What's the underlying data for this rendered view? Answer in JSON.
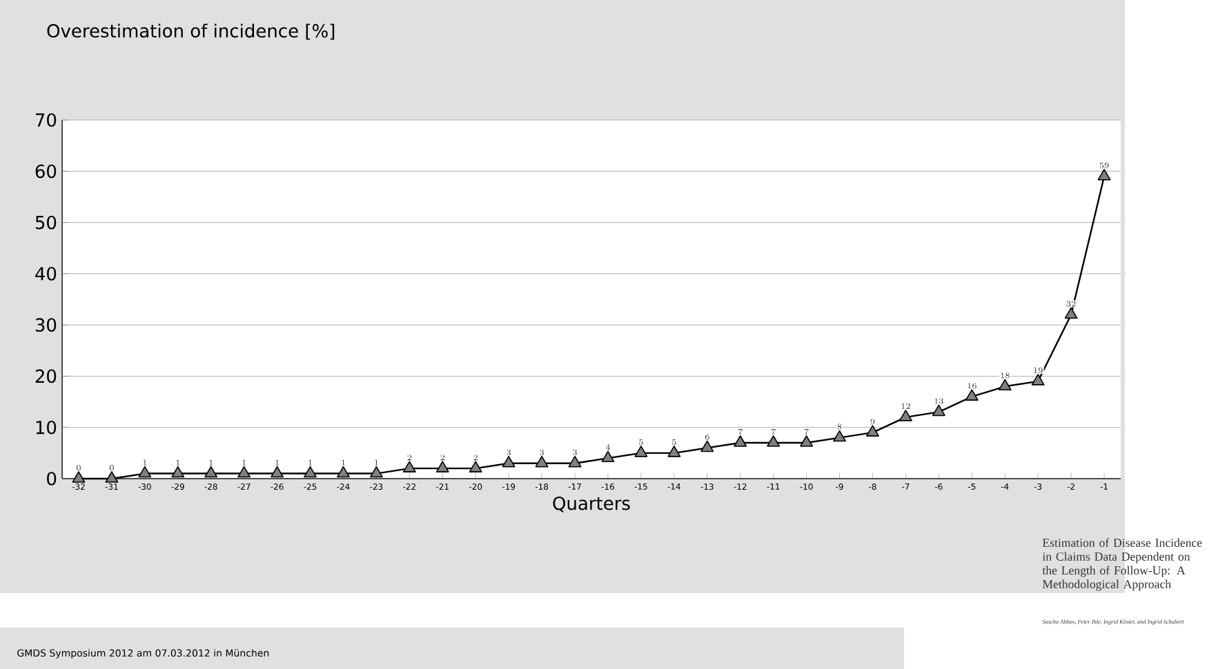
{
  "chart_data": {
    "type": "line",
    "ylabel": "Overestimation of incidence [%]",
    "xlabel": "Quarters",
    "categories": [
      "-32",
      "-31",
      "-30",
      "-29",
      "-28",
      "-27",
      "-26",
      "-25",
      "-24",
      "-23",
      "-22",
      "-21",
      "-20",
      "-19",
      "-18",
      "-17",
      "-16",
      "-15",
      "-14",
      "-13",
      "-12",
      "-11",
      "-10",
      "-9",
      "-8",
      "-7",
      "-6",
      "-5",
      "-4",
      "-3",
      "-2",
      "-1"
    ],
    "values": [
      0,
      0,
      1,
      1,
      1,
      1,
      1,
      1,
      1,
      1,
      2,
      2,
      2,
      3,
      3,
      3,
      4,
      5,
      5,
      6,
      7,
      7,
      7,
      8,
      9,
      12,
      13,
      16,
      18,
      19,
      32,
      59
    ],
    "color": "#808080",
    "marker": "triangle",
    "line_style": "solid",
    "grid": "y",
    "data_labels": true,
    "ylim": [
      0,
      70
    ],
    "yticks": [
      0,
      10,
      20,
      30,
      40,
      50,
      60,
      70
    ],
    "annotations": [
      "Estimation of Disease Incidence in Claims Data Dependent on the Length of Follow-Up: A Methodological Approach",
      "Sascha Abbas, Peter Ihle, Ingrid Köster, and Ingrid Schubert",
      "GMDS Symposium 2012 am 07.03.2012 in München"
    ]
  }
}
